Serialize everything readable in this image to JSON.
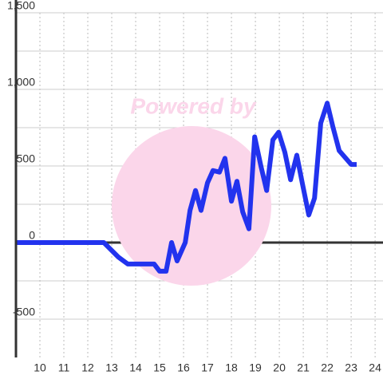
{
  "chart_data": {
    "type": "line",
    "watermark": "Powered by",
    "x": [
      9,
      12.67,
      13.27,
      13.67,
      14.77,
      15,
      15.27,
      15.5,
      15.73,
      16.07,
      16.27,
      16.5,
      16.73,
      17,
      17.23,
      17.5,
      17.73,
      18,
      18.23,
      18.47,
      18.73,
      18.97,
      19.23,
      19.47,
      19.73,
      19.97,
      20.23,
      20.47,
      20.73,
      20.97,
      21.23,
      21.47,
      21.73,
      22,
      22.23,
      22.5,
      23,
      23.23
    ],
    "series": [
      {
        "color": "#2233ee",
        "values": [
          0,
          0,
          -94,
          -140,
          -140,
          -187,
          -187,
          0,
          -120,
          0,
          210,
          340,
          210,
          390,
          470,
          460,
          550,
          270,
          400,
          200,
          90,
          690,
          500,
          340,
          670,
          720,
          590,
          410,
          570,
          380,
          180,
          290,
          780,
          910,
          760,
          600,
          510,
          510
        ]
      }
    ],
    "xlim": [
      9,
      24.33
    ],
    "xticks": [
      10,
      11,
      12,
      13,
      14,
      15,
      16,
      17,
      18,
      19,
      20,
      21,
      22,
      23,
      24
    ],
    "ylim": [
      -750,
      1500
    ],
    "yticks": [
      {
        "value": 1500,
        "label": "1,500"
      },
      {
        "value": 1000,
        "label": "1,000"
      },
      500,
      0,
      -500
    ],
    "yminor": [
      1250,
      750,
      250,
      -250
    ],
    "grid": true
  }
}
